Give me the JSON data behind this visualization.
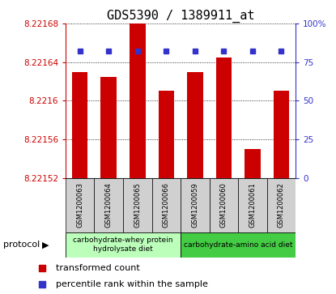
{
  "title": "GDS5390 / 1389911_at",
  "samples": [
    "GSM1200063",
    "GSM1200064",
    "GSM1200065",
    "GSM1200066",
    "GSM1200059",
    "GSM1200060",
    "GSM1200061",
    "GSM1200062"
  ],
  "transformed_counts": [
    8.22163,
    8.221625,
    8.22168,
    8.22161,
    8.22163,
    8.221645,
    8.22155,
    8.22161
  ],
  "percentile_ranks": [
    82,
    82,
    82,
    82,
    82,
    82,
    82,
    82
  ],
  "ylim_left": [
    8.22152,
    8.22168
  ],
  "ylim_right": [
    0,
    100
  ],
  "yticks_left": [
    8.22152,
    8.22156,
    8.2216,
    8.22164,
    8.22168
  ],
  "ytick_labels_left": [
    "8.22152",
    "8.22156",
    "8.2216",
    "8.22164",
    "8.22168"
  ],
  "yticks_right": [
    0,
    25,
    50,
    75,
    100
  ],
  "ytick_labels_right": [
    "0",
    "25",
    "50",
    "75",
    "100%"
  ],
  "bar_color": "#cc0000",
  "dot_color": "#3333cc",
  "protocol_groups": [
    {
      "label": "carbohydrate-whey protein\nhydrolysate diet",
      "start": 0,
      "end": 4,
      "color": "#bbffbb"
    },
    {
      "label": "carbohydrate-amino acid diet",
      "start": 4,
      "end": 8,
      "color": "#44cc44"
    }
  ],
  "legend_items": [
    {
      "color": "#cc0000",
      "label": "transformed count"
    },
    {
      "color": "#3333cc",
      "label": "percentile rank within the sample"
    }
  ],
  "title_fontsize": 11,
  "tick_label_fontsize": 7.5,
  "bar_width": 0.55,
  "bg_color_plot": "#ffffff",
  "bg_color_sample": "#d0d0d0",
  "left_axis_color": "#cc0000",
  "right_axis_color": "#3333cc",
  "dot_pct": 82
}
